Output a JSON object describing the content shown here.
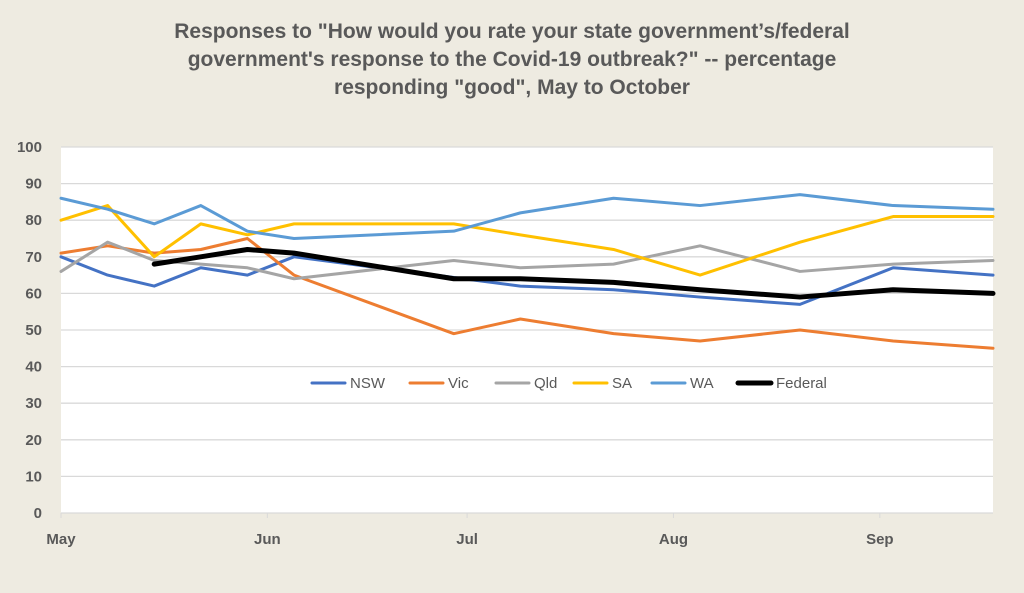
{
  "chart_data": {
    "type": "line",
    "title": "Responses to \"How would you rate your state government’s/federal government's response to the Covid-19 outbreak?\" -- percentage responding \"good\", May to October",
    "title_lines": [
      "Responses to \"How would you rate your state government’s/federal",
      "government's response to the Covid-19 outbreak?\" -- percentage",
      "responding \"good\", May to October"
    ],
    "xlabel": "",
    "ylabel": "",
    "ylim": [
      0,
      100
    ],
    "yticks": [
      0,
      10,
      20,
      30,
      40,
      50,
      60,
      70,
      80,
      90,
      100
    ],
    "x_axis": {
      "tick_labels": [
        "May",
        "Jun",
        "Jul",
        "Aug",
        "Sep"
      ],
      "tick_days": [
        0,
        31,
        61,
        92,
        123
      ],
      "range_days": [
        0,
        140
      ]
    },
    "x_days": [
      0,
      7,
      14,
      21,
      28,
      35,
      59,
      69,
      83,
      96,
      111,
      125,
      140
    ],
    "grid": true,
    "legend_position": "center",
    "series": [
      {
        "name": "NSW",
        "color": "#4472c4",
        "width": 3,
        "values": [
          70,
          65,
          62,
          67,
          65,
          70,
          null,
          62,
          61,
          59,
          57,
          67,
          65
        ]
      },
      {
        "name": "Vic",
        "color": "#ed7d31",
        "width": 3,
        "values": [
          71,
          73,
          71,
          72,
          75,
          65,
          49,
          53,
          49,
          47,
          50,
          47,
          45
        ]
      },
      {
        "name": "Qld",
        "color": "#a5a5a5",
        "width": 3,
        "values": [
          66,
          74,
          69,
          68,
          67,
          64,
          69,
          67,
          68,
          73,
          66,
          68,
          69
        ]
      },
      {
        "name": "SA",
        "color": "#ffc000",
        "width": 3,
        "values": [
          80,
          84,
          70,
          79,
          76,
          79,
          79,
          76,
          72,
          65,
          74,
          81,
          81
        ]
      },
      {
        "name": "WA",
        "color": "#5b9bd5",
        "width": 3,
        "values": [
          86,
          83,
          79,
          84,
          77,
          75,
          77,
          82,
          86,
          84,
          87,
          84,
          83
        ]
      },
      {
        "name": "Federal",
        "color": "#000000",
        "width": 5,
        "values": [
          null,
          null,
          68,
          70,
          72,
          71,
          64,
          64,
          63,
          61,
          59,
          61,
          60
        ]
      }
    ]
  }
}
